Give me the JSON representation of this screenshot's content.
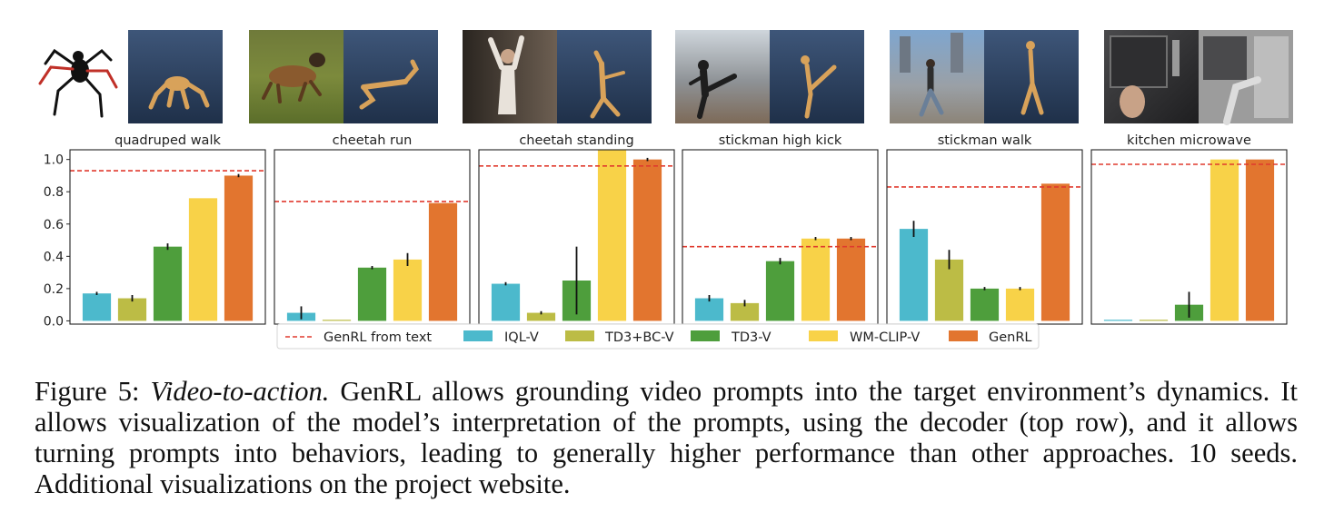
{
  "colors": {
    "IQL-V": "#4cb9cc",
    "TD3+BC-V": "#bcbc45",
    "TD3-V": "#4e9e3c",
    "WM-CLIP-V": "#f8d248",
    "GenRL": "#e2752f",
    "reference": "#e03a2e"
  },
  "legend": {
    "reference_label": "GenRL from text",
    "methods": [
      "IQL-V",
      "TD3+BC-V",
      "TD3-V",
      "WM-CLIP-V",
      "GenRL"
    ]
  },
  "thumbnails": [
    {
      "prompt": "spider-drawing",
      "decoded": "ant-walking-render"
    },
    {
      "prompt": "dog-running-photo",
      "decoded": "cheetah-running-render"
    },
    {
      "prompt": "person-arms-raised-photo",
      "decoded": "cheetah-standing-render"
    },
    {
      "prompt": "martial-artist-kick-photo",
      "decoded": "stickman-kick-render"
    },
    {
      "prompt": "person-walking-city-photo",
      "decoded": "stickman-walking-render"
    },
    {
      "prompt": "microwave-hand-photo",
      "decoded": "kitchen-robot-render"
    }
  ],
  "chart_data": [
    {
      "type": "bar",
      "title": "quadruped walk",
      "categories": [
        "IQL-V",
        "TD3+BC-V",
        "TD3-V",
        "WM-CLIP-V",
        "GenRL"
      ],
      "values": [
        0.17,
        0.14,
        0.46,
        0.76,
        0.9
      ],
      "errors": [
        0.01,
        0.02,
        0.02,
        0.0,
        0.01
      ],
      "reference_line": 0.93,
      "ylim": [
        -0.02,
        1.06
      ],
      "yticks": [
        "0.0",
        "0.2",
        "0.4",
        "0.6",
        "0.8",
        "1.0"
      ]
    },
    {
      "type": "bar",
      "title": "cheetah run",
      "categories": [
        "IQL-V",
        "TD3+BC-V",
        "TD3-V",
        "WM-CLIP-V",
        "GenRL"
      ],
      "values": [
        0.05,
        0.0,
        0.33,
        0.38,
        0.73
      ],
      "errors": [
        0.04,
        0.0,
        0.01,
        0.04,
        0.0
      ],
      "reference_line": 0.74,
      "ylim": [
        -0.02,
        1.06
      ]
    },
    {
      "type": "bar",
      "title": "cheetah standing",
      "categories": [
        "IQL-V",
        "TD3+BC-V",
        "TD3-V",
        "WM-CLIP-V",
        "GenRL"
      ],
      "values": [
        0.23,
        0.05,
        0.25,
        1.06,
        1.0
      ],
      "errors": [
        0.01,
        0.01,
        0.21,
        0.0,
        0.01
      ],
      "reference_line": 0.96,
      "ylim": [
        -0.02,
        1.06
      ]
    },
    {
      "type": "bar",
      "title": "stickman high kick",
      "categories": [
        "IQL-V",
        "TD3+BC-V",
        "TD3-V",
        "WM-CLIP-V",
        "GenRL"
      ],
      "values": [
        0.14,
        0.11,
        0.37,
        0.51,
        0.51
      ],
      "errors": [
        0.02,
        0.02,
        0.02,
        0.01,
        0.01
      ],
      "reference_line": 0.46,
      "ylim": [
        -0.02,
        1.06
      ]
    },
    {
      "type": "bar",
      "title": "stickman walk",
      "categories": [
        "IQL-V",
        "TD3+BC-V",
        "TD3-V",
        "WM-CLIP-V",
        "GenRL"
      ],
      "values": [
        0.57,
        0.38,
        0.2,
        0.2,
        0.85
      ],
      "errors": [
        0.05,
        0.06,
        0.01,
        0.01,
        0.0
      ],
      "reference_line": 0.83,
      "ylim": [
        -0.02,
        1.06
      ]
    },
    {
      "type": "bar",
      "title": "kitchen microwave",
      "categories": [
        "IQL-V",
        "TD3+BC-V",
        "TD3-V",
        "WM-CLIP-V",
        "GenRL"
      ],
      "values": [
        0.0,
        0.0,
        0.1,
        1.0,
        1.0
      ],
      "errors": [
        0.0,
        0.0,
        0.08,
        0.0,
        0.0
      ],
      "reference_line": 0.97,
      "ylim": [
        -0.02,
        1.06
      ]
    }
  ],
  "caption": {
    "label": "Figure 5:",
    "emph": "Video-to-action.",
    "text": "GenRL allows grounding video prompts into the target environment’s dynamics. It allows visualization of the model’s interpretation of the prompts, using the decoder (top row), and it allows turning prompts into behaviors, leading to generally higher performance than other approaches. 10 seeds. Additional visualizations on the project website."
  }
}
